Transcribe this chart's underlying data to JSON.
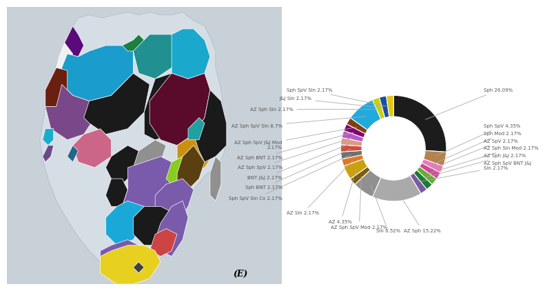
{
  "labels": [
    "Sph 26.09%",
    "Sph SpV 4.35%",
    "Sph Mod 2.17%",
    "AZ SpV 2.17%",
    "AZ Sph Sin Mod 2.17%",
    "AZ Sph J&J 2.17%",
    "AZ Sph SpV BNT J&J\nSin 2.17%",
    "AZ Sph 15.22%",
    "Sin 6.52%",
    "AZ Sph SpV Mod 2.17%",
    "AZ 4.35%",
    "AZ Sin 2.17%",
    "Sph SpV Sin Co 2.17%",
    "Sph BNT 2.17%",
    "BNT J&J 2.17%",
    "AZ Sph SpV 2.17%",
    "AZ Sph BNT 2.17%",
    "AZ Sph SpV J&J Mod\n2.17%",
    "AZ Sph SpV Sin 8.7%",
    "AZ Sph Sin 2.17%",
    "J&J Sin 2.17%",
    "Sph SpV Sin 2.17%"
  ],
  "values": [
    26.09,
    4.35,
    2.17,
    2.17,
    2.17,
    2.17,
    2.17,
    15.22,
    6.52,
    2.17,
    4.35,
    2.17,
    2.17,
    2.17,
    2.17,
    2.17,
    2.17,
    2.17,
    8.7,
    2.17,
    2.17,
    2.17
  ],
  "colors": [
    "#1c1c1c",
    "#b5824e",
    "#e87ab8",
    "#d04898",
    "#6aaa33",
    "#1a7a38",
    "#7a5aa0",
    "#aaaaaa",
    "#909090",
    "#7a5e10",
    "#c8a010",
    "#e07820",
    "#707070",
    "#cc5040",
    "#e09888",
    "#b858c8",
    "#800070",
    "#804010",
    "#22aadd",
    "#c8d010",
    "#1a4ea0",
    "#e0c810"
  ],
  "map_bg": "#c8d0d8",
  "background_color": "#ffffff",
  "subtitle": "(E)"
}
